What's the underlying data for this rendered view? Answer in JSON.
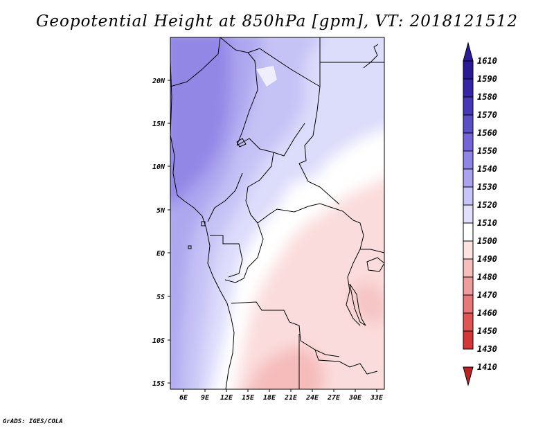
{
  "title": "Geopotential Height at 850hPa [gpm], VT: 2018121512",
  "credit": "GrADS: IGES/COLA",
  "map": {
    "lon_labels": [
      "6E",
      "9E",
      "12E",
      "15E",
      "18E",
      "21E",
      "24E",
      "27E",
      "30E",
      "33E"
    ],
    "lat_labels": [
      "20N",
      "15N",
      "10N",
      "5N",
      "EQ",
      "5S",
      "10S",
      "15S"
    ]
  },
  "colorbar": {
    "levels": [
      "1610",
      "1590",
      "1580",
      "1570",
      "1560",
      "1550",
      "1540",
      "1530",
      "1520",
      "1510",
      "1500",
      "1490",
      "1480",
      "1470",
      "1460",
      "1450",
      "1430",
      "1410"
    ],
    "colors": [
      "#2a1a96",
      "#3526a8",
      "#4638b8",
      "#5a4fc8",
      "#7466d8",
      "#8f85e6",
      "#aaa4f0",
      "#c8c6f8",
      "#e0e0fc",
      "#ffffff",
      "#fde2e2",
      "#f7bebe",
      "#ef9c9c",
      "#e87878",
      "#e05454",
      "#d63636",
      "#bb2222"
    ]
  }
}
